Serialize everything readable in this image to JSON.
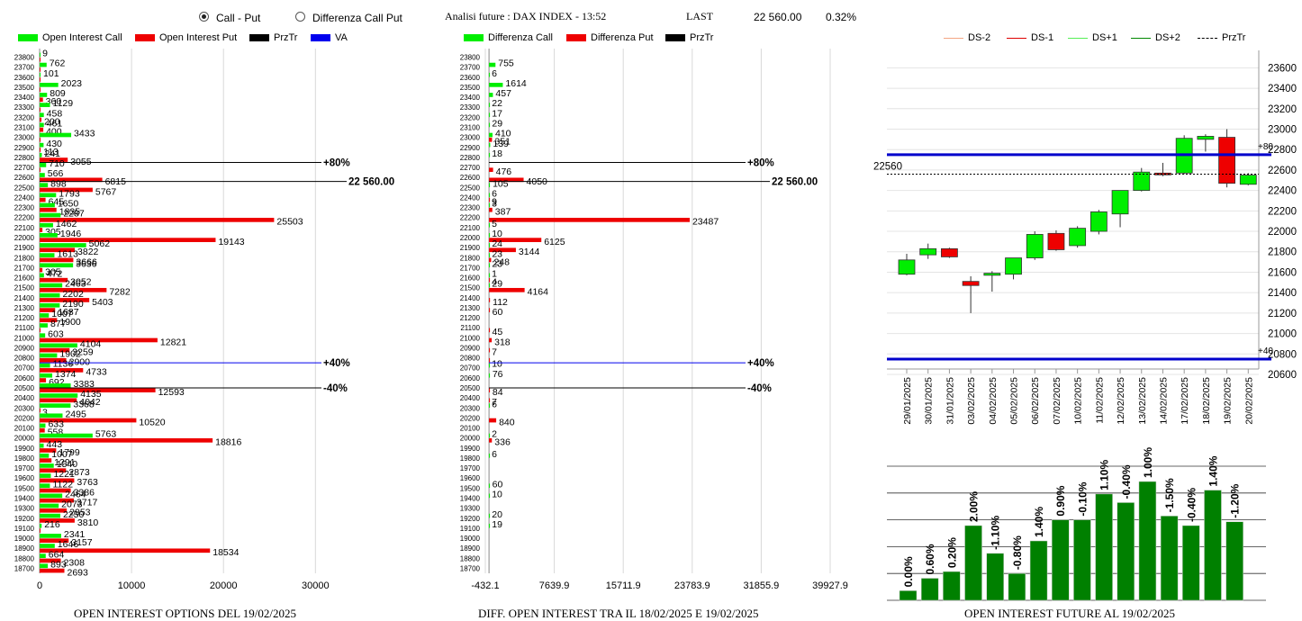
{
  "header": {
    "radio_call_put": "Call - Put",
    "radio_diff": "Differenza Call Put",
    "analysis_label": "Analisi future : DAX INDEX - 13:52",
    "last_label": "LAST",
    "last_value": "22 560.00",
    "last_change": "0.32%"
  },
  "legends": {
    "left": [
      {
        "label": "Open Interest Call",
        "color": "#00ee00",
        "kind": "box"
      },
      {
        "label": "Open Interest Put",
        "color": "#ee0000",
        "kind": "box"
      },
      {
        "label": "PrzTr",
        "color": "#000000",
        "kind": "box"
      },
      {
        "label": "VA",
        "color": "#0000ee",
        "kind": "box"
      }
    ],
    "mid": [
      {
        "label": "Differenza Call",
        "color": "#00ee00",
        "kind": "box"
      },
      {
        "label": "Differenza Put",
        "color": "#ee0000",
        "kind": "box"
      },
      {
        "label": "PrzTr",
        "color": "#000000",
        "kind": "box"
      }
    ],
    "right": [
      {
        "label": "DS-2",
        "color": "#f4a582",
        "kind": "line"
      },
      {
        "label": "DS-1",
        "color": "#dd0000",
        "kind": "line"
      },
      {
        "label": "DS+1",
        "color": "#55ee55",
        "kind": "line"
      },
      {
        "label": "DS+2",
        "color": "#008800",
        "kind": "line"
      },
      {
        "label": "PrzTr",
        "color": "#000000",
        "kind": "dash"
      }
    ]
  },
  "titles": {
    "left": "OPEN INTEREST OPTIONS DEL 19/02/2025",
    "mid": "DIFF. OPEN INTEREST TRA IL 18/02/2025 E 19/02/2025",
    "right": "OPEN INTEREST FUTURE AL 19/02/2025"
  },
  "chart_data": [
    {
      "type": "bar",
      "orientation": "horizontal",
      "title": "OPEN INTEREST OPTIONS DEL 19/02/2025",
      "strikes": [
        23800,
        23700,
        23600,
        23500,
        23400,
        23300,
        23200,
        23100,
        23000,
        22900,
        22800,
        22700,
        22600,
        22500,
        22400,
        22300,
        22200,
        22100,
        22000,
        21900,
        21800,
        21700,
        21600,
        21500,
        21400,
        21300,
        21200,
        21100,
        21000,
        20900,
        20800,
        20700,
        20600,
        20500,
        20400,
        20300,
        20200,
        20100,
        20000,
        19900,
        19800,
        19700,
        19600,
        19500,
        19400,
        19300,
        19200,
        19100,
        19000,
        18900,
        18800,
        18700
      ],
      "series": [
        {
          "name": "Open Interest Call",
          "color": "#00ee00",
          "values": [
            9,
            762,
            101,
            2023,
            809,
            1129,
            458,
            461,
            3433,
            430,
            241,
            710,
            566,
            898,
            1793,
            1650,
            2287,
            1462,
            1946,
            5062,
            1613,
            3636,
            472,
            2463,
            2202,
            2190,
            1007,
            877,
            603,
            4104,
            1902,
            1136,
            1374,
            3383,
            4135,
            3368,
            2495,
            633,
            5763,
            443,
            1007,
            1540,
            1221,
            1122,
            2464,
            2073,
            2250,
            216,
            2341,
            1646,
            664,
            893
          ]
        },
        {
          "name": "Open Interest Put",
          "color": "#ee0000",
          "values": [
            1,
            1,
            1,
            1,
            360,
            1,
            200,
            400,
            1,
            113,
            3055,
            1,
            6815,
            5767,
            645,
            1835,
            25503,
            305,
            19143,
            3822,
            3666,
            305,
            3052,
            7282,
            5403,
            1687,
            1900,
            1,
            12821,
            3259,
            2900,
            4733,
            692,
            12593,
            4042,
            3,
            10520,
            558,
            18816,
            1799,
            1291,
            2873,
            3763,
            3386,
            3717,
            2953,
            3810,
            1,
            3157,
            18534,
            2308,
            2693
          ]
        }
      ],
      "xticks": [
        0,
        10000,
        20000,
        30000
      ],
      "xlim": [
        0,
        38000
      ],
      "markers": [
        {
          "label": "+80%",
          "strike": 22750,
          "color": "#000000"
        },
        {
          "label": "22 560.00",
          "strike": 22560,
          "color": "#000000"
        },
        {
          "label": "+40%",
          "strike": 20750,
          "color": "#0000ee"
        },
        {
          "label": "-40%",
          "strike": 20500,
          "color": "#000000"
        }
      ]
    },
    {
      "type": "bar",
      "orientation": "horizontal",
      "title": "DIFF. OPEN INTEREST TRA IL 18/02/2025 E 19/02/2025",
      "strikes": [
        23800,
        23700,
        23600,
        23500,
        23400,
        23300,
        23200,
        23100,
        23000,
        22900,
        22800,
        22700,
        22600,
        22500,
        22400,
        22300,
        22200,
        22100,
        22000,
        21900,
        21800,
        21700,
        21600,
        21500,
        21400,
        21300,
        21200,
        21100,
        21000,
        20900,
        20800,
        20700,
        20600,
        20500,
        20400,
        20300,
        20200,
        20100,
        20000,
        19900,
        19800,
        19700,
        19600,
        19500,
        19400,
        19300,
        19200,
        19100,
        19000,
        18900,
        18800,
        18700
      ],
      "series": [
        {
          "name": "Differenza Call",
          "color": "#00ee00",
          "values": [
            0,
            755,
            6,
            1614,
            457,
            22,
            17,
            29,
            410,
            139,
            18,
            0,
            0,
            105,
            6,
            3,
            0,
            5,
            10,
            24,
            23,
            23,
            1,
            29,
            0,
            0,
            0,
            0,
            0,
            0,
            0,
            10,
            76,
            0,
            0,
            6,
            0,
            0,
            2,
            0,
            6,
            0,
            0,
            60,
            10,
            0,
            20,
            19,
            0,
            0,
            0,
            0
          ]
        },
        {
          "name": "Differenza Put",
          "color": "#ee0000",
          "values": [
            0,
            0,
            0,
            0,
            0,
            0,
            0,
            0,
            351,
            0,
            0,
            476,
            4050,
            0,
            9,
            387,
            23487,
            0,
            6125,
            3144,
            248,
            0,
            4,
            4164,
            112,
            60,
            0,
            45,
            318,
            7,
            1,
            0,
            0,
            84,
            7,
            0,
            840,
            0,
            336,
            0,
            0,
            0,
            0,
            0,
            0,
            0,
            0,
            0,
            0,
            0,
            0,
            0
          ]
        }
      ],
      "xticks": [
        -432.1,
        7639.9,
        15711.9,
        23783.9,
        31855.9,
        39927.9
      ],
      "xlim": [
        -432.1,
        39927.9
      ],
      "markers": [
        {
          "label": "+80%",
          "strike": 22750,
          "color": "#000000"
        },
        {
          "label": "22 560.00",
          "strike": 22560,
          "color": "#000000"
        },
        {
          "label": "+40%",
          "strike": 20750,
          "color": "#0000ee"
        },
        {
          "label": "-40%",
          "strike": 20500,
          "color": "#000000"
        }
      ]
    },
    {
      "type": "candlestick",
      "dates": [
        "29/01/2025",
        "30/01/2025",
        "31/01/2025",
        "03/02/2025",
        "04/02/2025",
        "05/02/2025",
        "06/02/2025",
        "07/02/2025",
        "10/02/2025",
        "11/02/2025",
        "12/02/2025",
        "13/02/2025",
        "14/02/2025",
        "17/02/2025",
        "18/02/2025",
        "19/02/2025",
        "20/02/2025"
      ],
      "candles": [
        {
          "o": 21580,
          "h": 21780,
          "l": 21570,
          "c": 21720
        },
        {
          "o": 21770,
          "h": 21880,
          "l": 21730,
          "c": 21830
        },
        {
          "o": 21830,
          "h": 21840,
          "l": 21740,
          "c": 21750
        },
        {
          "o": 21510,
          "h": 21560,
          "l": 21200,
          "c": 21470
        },
        {
          "o": 21570,
          "h": 21610,
          "l": 21410,
          "c": 21590
        },
        {
          "o": 21580,
          "h": 21740,
          "l": 21530,
          "c": 21740
        },
        {
          "o": 21740,
          "h": 22000,
          "l": 21720,
          "c": 21970
        },
        {
          "o": 21980,
          "h": 22010,
          "l": 21810,
          "c": 21820
        },
        {
          "o": 21860,
          "h": 22050,
          "l": 21840,
          "c": 22030
        },
        {
          "o": 22000,
          "h": 22210,
          "l": 21970,
          "c": 22190
        },
        {
          "o": 22170,
          "h": 22400,
          "l": 22040,
          "c": 22400
        },
        {
          "o": 22400,
          "h": 22620,
          "l": 22390,
          "c": 22580
        },
        {
          "o": 22570,
          "h": 22670,
          "l": 22540,
          "c": 22560
        },
        {
          "o": 22570,
          "h": 22940,
          "l": 22560,
          "c": 22910
        },
        {
          "o": 22900,
          "h": 22950,
          "l": 22780,
          "c": 22930
        },
        {
          "o": 22920,
          "h": 23000,
          "l": 22430,
          "c": 22470
        },
        {
          "o": 22460,
          "h": 22570,
          "l": 22450,
          "c": 22550
        }
      ],
      "ylim": [
        20600,
        23700
      ],
      "yticks": [
        20600,
        20800,
        21000,
        21200,
        21400,
        21600,
        21800,
        22000,
        22200,
        22400,
        22600,
        22800,
        23000,
        23200,
        23400,
        23600
      ],
      "price_label": "22560",
      "price_level": 22560,
      "upper_level": {
        "value": 22750,
        "label": "+80"
      },
      "lower_level": {
        "value": 20750,
        "label": "+40"
      }
    },
    {
      "type": "bar",
      "title": "OPEN INTEREST FUTURE AL 19/02/2025",
      "categories": [
        "29/01/2025",
        "30/01/2025",
        "31/01/2025",
        "03/02/2025",
        "04/02/2025",
        "05/02/2025",
        "06/02/2025",
        "07/02/2025",
        "10/02/2025",
        "11/02/2025",
        "12/02/2025",
        "13/02/2025",
        "14/02/2025",
        "17/02/2025",
        "18/02/2025",
        "19/02/2025",
        "20/02/2025"
      ],
      "values": [
        10,
        23,
        30,
        78,
        49,
        28,
        62,
        84,
        84,
        111,
        102,
        124,
        88,
        78,
        115,
        82,
        null
      ],
      "labels": [
        "0.00%",
        "0.60%",
        "0.20%",
        "2.00%",
        "-1.10%",
        "-0.80%",
        "1.40%",
        "0.90%",
        "-0.10%",
        "1.10%",
        "-0.40%",
        "1.00%",
        "-1.50%",
        "-0.40%",
        "1.40%",
        "-1.20%",
        ""
      ],
      "ylim": [
        0,
        140
      ],
      "color": "#008000"
    }
  ]
}
